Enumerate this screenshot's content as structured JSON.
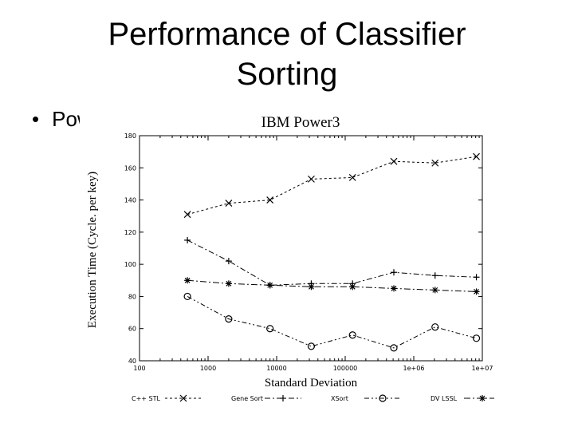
{
  "slide": {
    "title_line1": "Performance of Classifier",
    "title_line2": "Sorting",
    "bullet_text": "Pow"
  },
  "chart_data": {
    "type": "line",
    "title": "IBM Power3",
    "xlabel": "Standard Deviation",
    "ylabel": "Execution Time (Cycle. per key)",
    "x_scale": "log",
    "xlim": [
      100,
      10000000
    ],
    "ylim": [
      40,
      180
    ],
    "x_ticks": [
      100,
      1000,
      10000,
      100000,
      1000000,
      10000000
    ],
    "x_tick_labels": [
      "100",
      "1000",
      "10000",
      "100000",
      "1e+06",
      "1e+07"
    ],
    "y_ticks": [
      40,
      60,
      80,
      100,
      120,
      140,
      160,
      180
    ],
    "y_tick_labels": [
      "40",
      "60",
      "80",
      "100",
      "120",
      "140",
      "160",
      "180"
    ],
    "grid": false,
    "legend_position": "bottom",
    "x": [
      500,
      2000,
      8000,
      32000,
      128000,
      512000,
      2048000,
      8192000
    ],
    "series": [
      {
        "name": "C++ STL",
        "marker": "x",
        "values": [
          131,
          138,
          140,
          153,
          154,
          164,
          163,
          167
        ]
      },
      {
        "name": "Gene Sort",
        "marker": "+",
        "values": [
          115,
          102,
          87,
          88,
          88,
          95,
          93,
          92
        ]
      },
      {
        "name": "XSort",
        "marker": "o",
        "values": [
          80,
          66,
          60,
          49,
          56,
          48,
          61,
          54
        ]
      },
      {
        "name": "DV LSSL",
        "marker": "*",
        "values": [
          90,
          88,
          87,
          86,
          86,
          85,
          84,
          83
        ]
      }
    ]
  }
}
